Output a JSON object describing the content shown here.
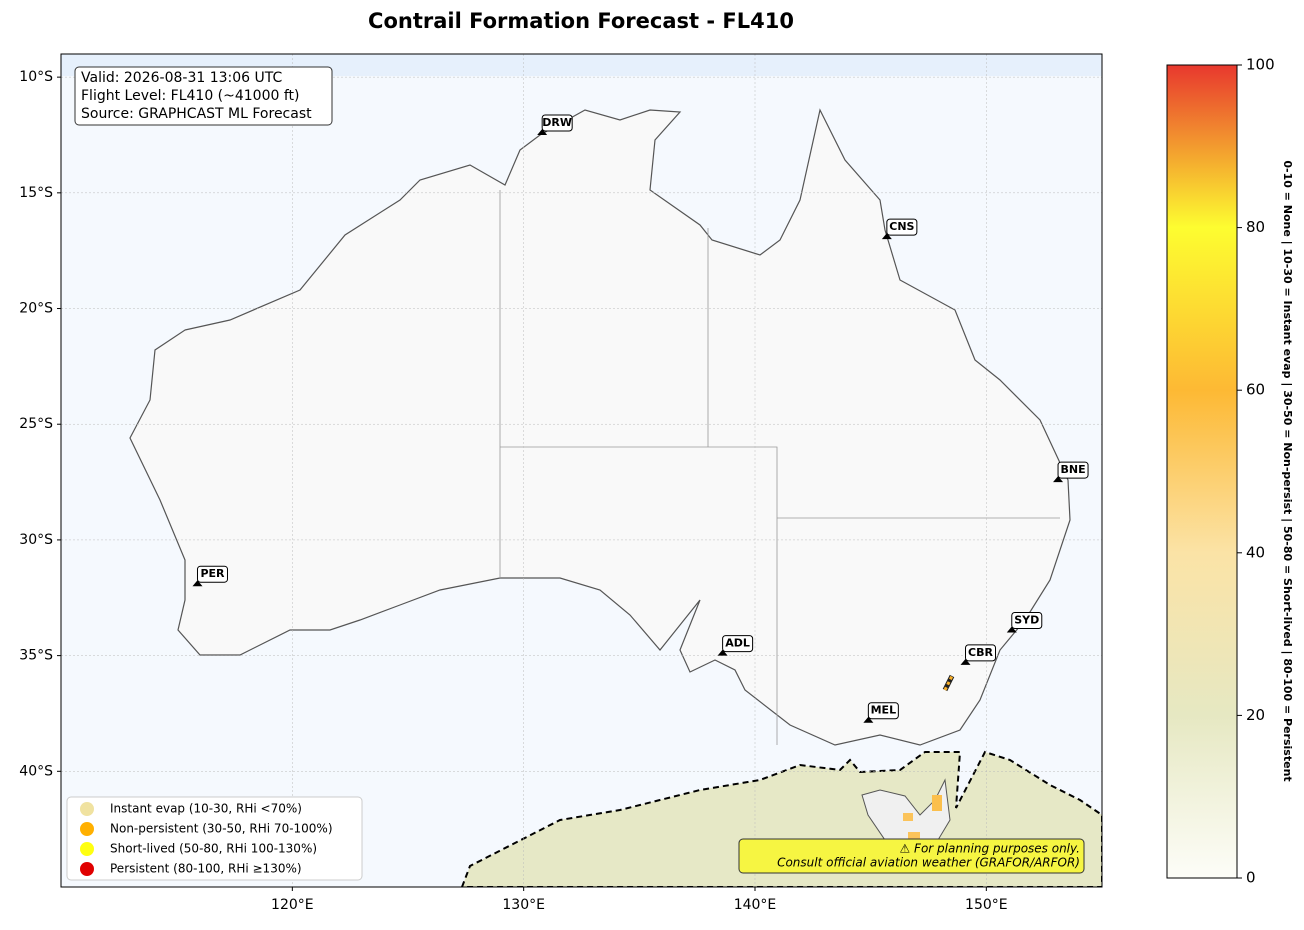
{
  "title": "Contrail Formation Forecast - FL410",
  "map": {
    "xlim": [
      110,
      155
    ],
    "ylim": [
      -45,
      -9
    ],
    "xticks": [
      {
        "value": 120,
        "label": "120°E"
      },
      {
        "value": 130,
        "label": "130°E"
      },
      {
        "value": 140,
        "label": "140°E"
      },
      {
        "value": 150,
        "label": "150°E"
      }
    ],
    "yticks": [
      {
        "value": -10,
        "label": "10°S"
      },
      {
        "value": -15,
        "label": "15°S"
      },
      {
        "value": -20,
        "label": "20°S"
      },
      {
        "value": -25,
        "label": "25°S"
      },
      {
        "value": -30,
        "label": "30°S"
      },
      {
        "value": -35,
        "label": "35°S"
      },
      {
        "value": -40,
        "label": "40°S"
      }
    ],
    "grid": true,
    "airports": [
      {
        "code": "DRW",
        "lon": 130.8,
        "lat": -12.5
      },
      {
        "code": "CNS",
        "lon": 145.7,
        "lat": -17.0
      },
      {
        "code": "BNE",
        "lon": 153.1,
        "lat": -27.5
      },
      {
        "code": "PER",
        "lon": 115.9,
        "lat": -32.0
      },
      {
        "code": "ADL",
        "lon": 138.6,
        "lat": -35.0
      },
      {
        "code": "SYD",
        "lon": 151.1,
        "lat": -34.0
      },
      {
        "code": "CBR",
        "lon": 149.1,
        "lat": -35.4
      },
      {
        "code": "MEL",
        "lon": 144.9,
        "lat": -37.9
      }
    ]
  },
  "info": [
    "Valid: 2026-08-31 13:06 UTC",
    "Flight Level: FL410 (~41000 ft)",
    "Source: GRAPHCAST ML Forecast"
  ],
  "legend": [
    {
      "label": "Instant evap (10-30, RHi <70%)",
      "color": "#f0e2a0"
    },
    {
      "label": "Non-persistent (30-50, RHi 70-100%)",
      "color": "#ffb000"
    },
    {
      "label": "Short-lived (50-80, RHi 100-130%)",
      "color": "#ffff10"
    },
    {
      "label": "Persistent (80-100, RHi ≥130%)",
      "color": "#e00000"
    }
  ],
  "note": [
    "⚠ For planning purposes only.",
    "Consult official aviation weather (GRAFOR/ARFOR)"
  ],
  "colorbar": {
    "lim": [
      0,
      100
    ],
    "ticks": [
      0,
      20,
      40,
      60,
      80,
      100
    ],
    "label": "0-10 = None  |  10-30 = Instant evap  |  30-50 = Non-persist  |  50-80 = Short-lived  |  80-100 = Persistent",
    "colors": [
      "#fdfdf8",
      "#e6e8c2",
      "#fbe3a6",
      "#fdb934",
      "#fdfd30",
      "#e8382e"
    ]
  }
}
